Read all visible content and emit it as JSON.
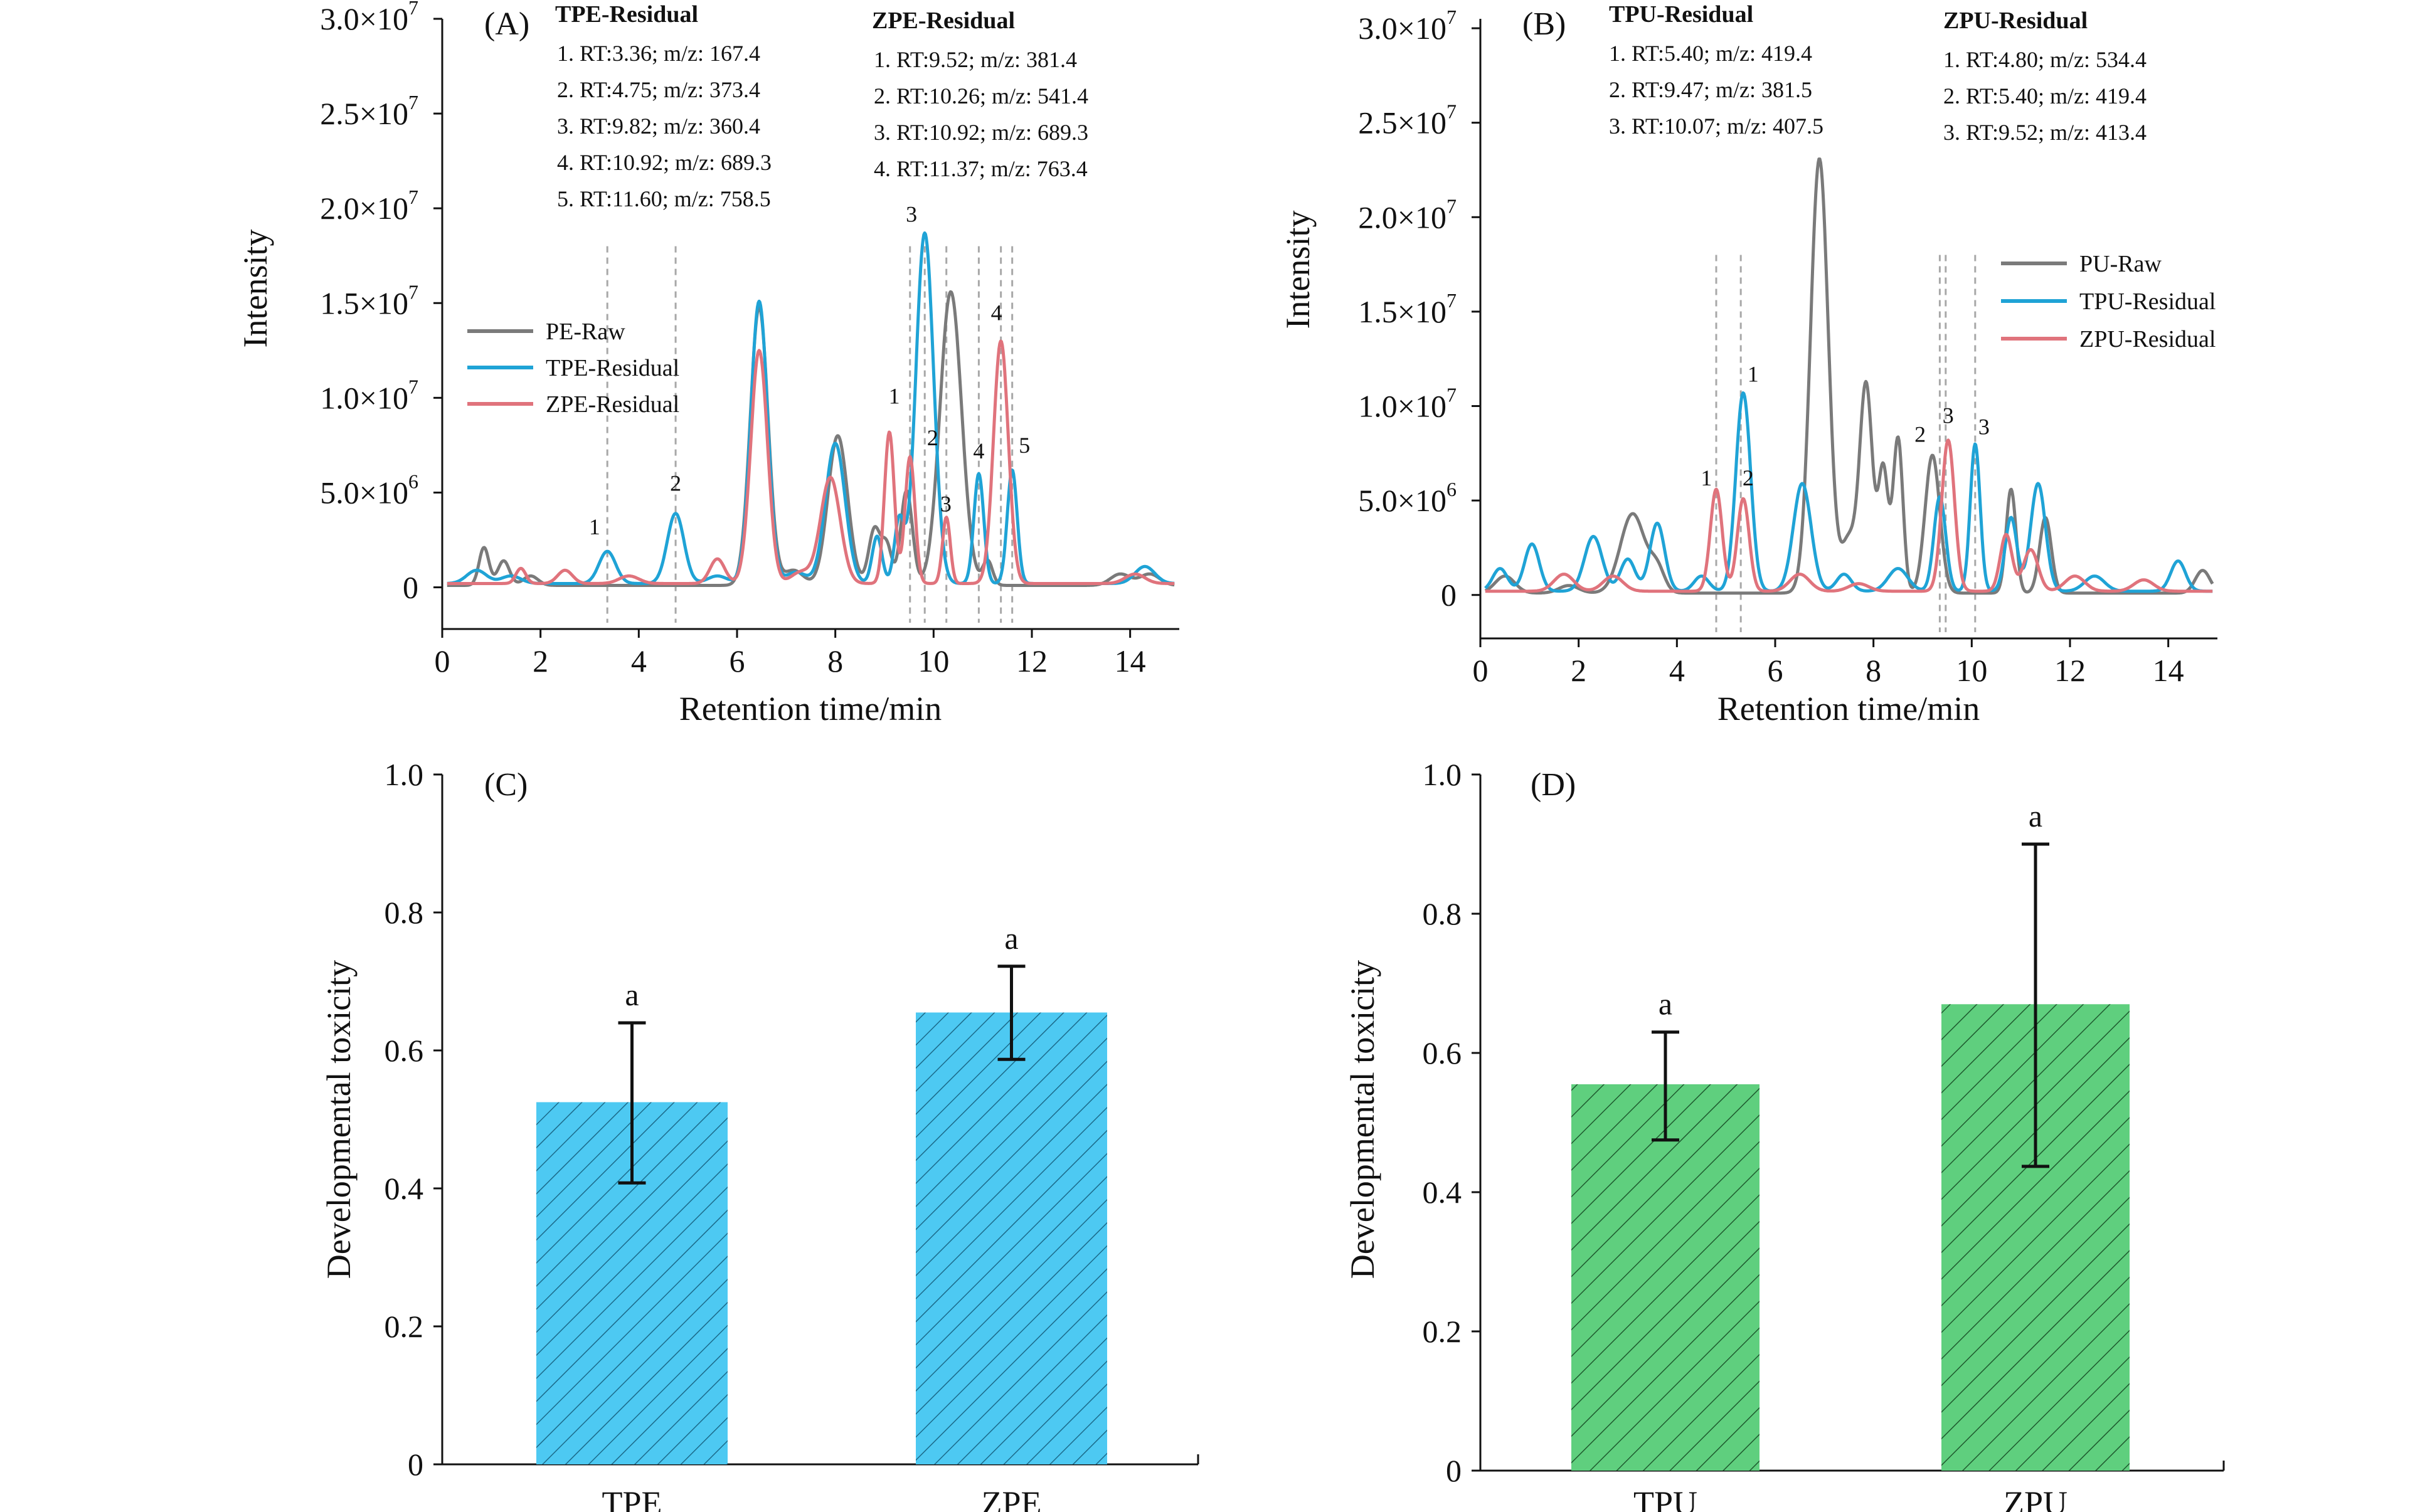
{
  "chart_data": [
    {
      "id": "A",
      "type": "line",
      "panel_label": "(A)",
      "xlabel": "Retention time/min",
      "ylabel": "Intensity",
      "xlim": [
        0,
        15
      ],
      "ylim": [
        -2200000,
        30000000
      ],
      "xticks": [
        0,
        2,
        4,
        6,
        8,
        10,
        12,
        14
      ],
      "yticks": [
        {
          "v": 0,
          "m": "0",
          "e": ""
        },
        {
          "v": 5000000,
          "m": "5.0×10",
          "e": "6"
        },
        {
          "v": 10000000,
          "m": "1.0×10",
          "e": "7"
        },
        {
          "v": 15000000,
          "m": "1.5×10",
          "e": "7"
        },
        {
          "v": 20000000,
          "m": "2.0×10",
          "e": "7"
        },
        {
          "v": 25000000,
          "m": "2.5×10",
          "e": "7"
        },
        {
          "v": 30000000,
          "m": "3.0×10",
          "e": "7"
        }
      ],
      "legend": [
        {
          "name": "PE-Raw",
          "color": "#7a7a7a"
        },
        {
          "name": "TPE-Residual",
          "color": "#1fa3d6"
        },
        {
          "name": "ZPE-Residual",
          "color": "#e0737c"
        }
      ],
      "annotations": [
        {
          "title": "TPE-Residual",
          "lines": [
            "1. RT:3.36; m/z: 167.4",
            "2. RT:4.75; m/z: 373.4",
            "3. RT:9.82; m/z: 360.4",
            "4. RT:10.92; m/z: 689.3",
            "5. RT:11.60; m/z: 758.5"
          ]
        },
        {
          "title": "ZPE-Residual",
          "lines": [
            "1. RT:9.52; m/z: 381.4",
            "2. RT:10.26; m/z: 541.4",
            "3. RT:10.92; m/z: 689.3",
            "4. RT:11.37; m/z: 763.4"
          ]
        }
      ],
      "dashed_lines": [
        3.36,
        4.75,
        9.52,
        9.82,
        10.26,
        10.92,
        11.37,
        11.6
      ],
      "peak_labels": [
        {
          "text": "1",
          "x": 3.1,
          "y": 2800000
        },
        {
          "text": "2",
          "x": 4.75,
          "y": 5100000
        },
        {
          "text": "3",
          "x": 9.55,
          "y": 19300000
        },
        {
          "text": "1",
          "x": 9.2,
          "y": 9700000
        },
        {
          "text": "2",
          "x": 9.98,
          "y": 7500000
        },
        {
          "text": "3",
          "x": 10.25,
          "y": 4000000
        },
        {
          "text": "4",
          "x": 10.92,
          "y": 6800000
        },
        {
          "text": "4",
          "x": 11.28,
          "y": 14100000
        },
        {
          "text": "5",
          "x": 11.85,
          "y": 7100000
        }
      ],
      "series": [
        {
          "name": "PE-Raw",
          "color": "#7a7a7a",
          "baseline": 100000,
          "peaks": [
            [
              0.85,
              2000000,
              0.1
            ],
            [
              1.25,
              1300000,
              0.12
            ],
            [
              1.8,
              500000,
              0.15
            ],
            [
              6.45,
              14700000,
              0.18
            ],
            [
              7.15,
              800000,
              0.2
            ],
            [
              8.05,
              7900000,
              0.2
            ],
            [
              8.8,
              3000000,
              0.12
            ],
            [
              9.05,
              2000000,
              0.1
            ],
            [
              9.45,
              5000000,
              0.12
            ],
            [
              10.35,
              15500000,
              0.22
            ],
            [
              11.1,
              1300000,
              0.1
            ],
            [
              13.8,
              600000,
              0.2
            ],
            [
              14.4,
              600000,
              0.2
            ]
          ]
        },
        {
          "name": "TPE-Residual",
          "color": "#1fa3d6",
          "baseline": 200000,
          "peaks": [
            [
              0.7,
              700000,
              0.2
            ],
            [
              1.4,
              400000,
              0.2
            ],
            [
              3.36,
              1700000,
              0.17
            ],
            [
              4.75,
              3700000,
              0.17
            ],
            [
              5.6,
              400000,
              0.2
            ],
            [
              6.45,
              14900000,
              0.17
            ],
            [
              7.2,
              600000,
              0.2
            ],
            [
              8.0,
              7400000,
              0.2
            ],
            [
              8.85,
              2500000,
              0.1
            ],
            [
              9.3,
              3300000,
              0.1
            ],
            [
              9.82,
              18500000,
              0.18
            ],
            [
              10.92,
              5800000,
              0.1
            ],
            [
              11.6,
              6000000,
              0.1
            ],
            [
              14.3,
              900000,
              0.2
            ]
          ]
        },
        {
          "name": "ZPE-Residual",
          "color": "#e0737c",
          "baseline": 200000,
          "peaks": [
            [
              1.6,
              800000,
              0.1
            ],
            [
              2.5,
              700000,
              0.15
            ],
            [
              3.8,
              400000,
              0.2
            ],
            [
              5.6,
              1300000,
              0.15
            ],
            [
              6.45,
              12300000,
              0.17
            ],
            [
              7.3,
              600000,
              0.2
            ],
            [
              7.9,
              5600000,
              0.2
            ],
            [
              9.1,
              8000000,
              0.1
            ],
            [
              9.52,
              6700000,
              0.1
            ],
            [
              10.26,
              3500000,
              0.08
            ],
            [
              11.37,
              12800000,
              0.15
            ],
            [
              14.1,
              500000,
              0.2
            ]
          ]
        }
      ]
    },
    {
      "id": "B",
      "type": "line",
      "panel_label": "(B)",
      "xlabel": "Retention time/min",
      "ylabel": "Intensity",
      "xlim": [
        0,
        15
      ],
      "ylim": [
        -2300000,
        30500000
      ],
      "xticks": [
        0,
        2,
        4,
        6,
        8,
        10,
        12,
        14
      ],
      "yticks": [
        {
          "v": 0,
          "m": "0",
          "e": ""
        },
        {
          "v": 5000000,
          "m": "5.0×10",
          "e": "6"
        },
        {
          "v": 10000000,
          "m": "1.0×10",
          "e": "7"
        },
        {
          "v": 15000000,
          "m": "1.5×10",
          "e": "7"
        },
        {
          "v": 20000000,
          "m": "2.0×10",
          "e": "7"
        },
        {
          "v": 25000000,
          "m": "2.5×10",
          "e": "7"
        },
        {
          "v": 30000000,
          "m": "3.0×10",
          "e": "7"
        }
      ],
      "legend": [
        {
          "name": "PU-Raw",
          "color": "#7a7a7a"
        },
        {
          "name": "TPU-Residual",
          "color": "#1fa3d6"
        },
        {
          "name": "ZPU-Residual",
          "color": "#e0737c"
        }
      ],
      "annotations": [
        {
          "title": "TPU-Residual",
          "lines": [
            "1. RT:5.40; m/z: 419.4",
            "2. RT:9.47; m/z: 381.5",
            "3. RT:10.07; m/z: 407.5"
          ]
        },
        {
          "title": "ZPU-Residual",
          "lines": [
            "1. RT:4.80; m/z: 534.4",
            "2. RT:5.40; m/z: 419.4",
            "3. RT:9.52; m/z: 413.4"
          ]
        }
      ],
      "dashed_lines": [
        4.8,
        5.3,
        9.35,
        9.47,
        10.07
      ],
      "peak_labels": [
        {
          "text": "1",
          "x": 5.55,
          "y": 11300000
        },
        {
          "text": "1",
          "x": 4.6,
          "y": 5800000
        },
        {
          "text": "2",
          "x": 5.45,
          "y": 5800000
        },
        {
          "text": "2",
          "x": 8.95,
          "y": 8100000
        },
        {
          "text": "3",
          "x": 9.52,
          "y": 9100000
        },
        {
          "text": "3",
          "x": 10.25,
          "y": 8500000
        }
      ],
      "series": [
        {
          "name": "PU-Raw",
          "color": "#7a7a7a",
          "baseline": 100000,
          "peaks": [
            [
              0.5,
              900000,
              0.2
            ],
            [
              1.8,
              400000,
              0.2
            ],
            [
              3.1,
              4200000,
              0.25
            ],
            [
              3.6,
              1200000,
              0.15
            ],
            [
              6.9,
              23000000,
              0.18
            ],
            [
              7.5,
              2800000,
              0.15
            ],
            [
              7.85,
              11000000,
              0.13
            ],
            [
              8.2,
              6500000,
              0.1
            ],
            [
              8.5,
              8200000,
              0.1
            ],
            [
              9.2,
              7300000,
              0.15
            ],
            [
              10.8,
              5500000,
              0.1
            ],
            [
              11.5,
              4000000,
              0.12
            ],
            [
              14.7,
              1200000,
              0.15
            ]
          ]
        },
        {
          "name": "TPU-Residual",
          "color": "#1fa3d6",
          "baseline": 200000,
          "peaks": [
            [
              0.4,
              1200000,
              0.15
            ],
            [
              1.05,
              2500000,
              0.15
            ],
            [
              2.3,
              2900000,
              0.18
            ],
            [
              3.0,
              1700000,
              0.15
            ],
            [
              3.6,
              3600000,
              0.15
            ],
            [
              4.5,
              800000,
              0.15
            ],
            [
              5.35,
              10500000,
              0.15
            ],
            [
              6.55,
              5700000,
              0.18
            ],
            [
              7.4,
              900000,
              0.15
            ],
            [
              8.5,
              1200000,
              0.2
            ],
            [
              9.35,
              5000000,
              0.12
            ],
            [
              10.07,
              7800000,
              0.1
            ],
            [
              10.8,
              3900000,
              0.12
            ],
            [
              11.35,
              5700000,
              0.15
            ],
            [
              12.5,
              800000,
              0.2
            ],
            [
              14.2,
              1600000,
              0.15
            ]
          ]
        },
        {
          "name": "ZPU-Residual",
          "color": "#e0737c",
          "baseline": 200000,
          "peaks": [
            [
              1.7,
              900000,
              0.2
            ],
            [
              2.7,
              800000,
              0.2
            ],
            [
              4.8,
              5400000,
              0.12
            ],
            [
              5.35,
              4900000,
              0.12
            ],
            [
              6.5,
              900000,
              0.2
            ],
            [
              7.7,
              400000,
              0.2
            ],
            [
              9.52,
              8000000,
              0.13
            ],
            [
              10.7,
              3000000,
              0.12
            ],
            [
              11.2,
              2200000,
              0.15
            ],
            [
              12.1,
              800000,
              0.2
            ],
            [
              13.5,
              600000,
              0.2
            ]
          ]
        }
      ]
    },
    {
      "id": "C",
      "type": "bar",
      "panel_label": "(C)",
      "xlabel": "",
      "ylabel": "Developmental toxicity",
      "ylim": [
        0,
        1.0
      ],
      "yticks": [
        "0",
        "0.2",
        "0.4",
        "0.6",
        "0.8",
        "1.0"
      ],
      "categories": [
        "TPE",
        "ZPE"
      ],
      "values": [
        0.525,
        0.655
      ],
      "errors": [
        [
          0.408,
          0.64
        ],
        [
          0.587,
          0.722
        ]
      ],
      "significance": [
        "a",
        "a"
      ],
      "bar_color": "#4dc9f2",
      "hatch_color": "#1b6a8a"
    },
    {
      "id": "D",
      "type": "bar",
      "panel_label": "(D)",
      "xlabel": "",
      "ylabel": "Developmental toxicity",
      "ylim": [
        0,
        1.0
      ],
      "yticks": [
        "0",
        "0.2",
        "0.4",
        "0.6",
        "0.8",
        "1.0"
      ],
      "categories": [
        "TPU",
        "ZPU"
      ],
      "values": [
        0.555,
        0.67
      ],
      "errors": [
        [
          0.475,
          0.63
        ],
        [
          0.437,
          0.9
        ]
      ],
      "significance": [
        "a",
        "a"
      ],
      "bar_color": "#5fcf7e",
      "hatch_color": "#1e5a2e"
    }
  ]
}
